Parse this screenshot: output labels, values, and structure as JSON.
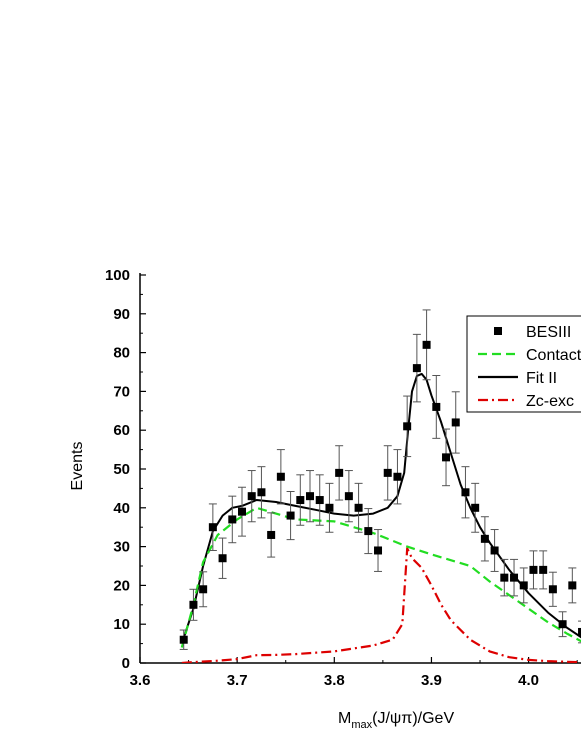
{
  "chart_data": {
    "type": "scatter",
    "xlabel_main": "M",
    "xlabel_sub": "max",
    "xlabel_rest": "(J/ψπ)/GeV",
    "ylabel": "Events",
    "xlim": [
      3.6,
      4.05
    ],
    "ylim": [
      0,
      100
    ],
    "xticks": [
      "3.6",
      "3.7",
      "3.8",
      "3.9",
      "4.0"
    ],
    "yticks": [
      "0",
      "10",
      "20",
      "30",
      "40",
      "50",
      "60",
      "70",
      "80",
      "90",
      "100"
    ],
    "legend_position": "top-right",
    "series": [
      {
        "name": "BESIII",
        "kind": "points",
        "color": "#000000",
        "x": [
          3.645,
          3.655,
          3.665,
          3.675,
          3.685,
          3.695,
          3.705,
          3.715,
          3.725,
          3.735,
          3.745,
          3.755,
          3.765,
          3.775,
          3.785,
          3.795,
          3.805,
          3.815,
          3.825,
          3.835,
          3.845,
          3.855,
          3.865,
          3.875,
          3.885,
          3.895,
          3.905,
          3.915,
          3.925,
          3.935,
          3.945,
          3.955,
          3.965,
          3.975,
          3.985,
          3.995,
          4.005,
          4.015,
          4.025,
          4.035,
          4.045,
          4.055
        ],
        "y": [
          6,
          15,
          19,
          35,
          27,
          37,
          39,
          43,
          44,
          33,
          48,
          38,
          42,
          43,
          42,
          40,
          49,
          43,
          40,
          34,
          29,
          49,
          48,
          61,
          76,
          82,
          66,
          53,
          62,
          44,
          40,
          32,
          29,
          22,
          22,
          20,
          24,
          24,
          19,
          10,
          20,
          8
        ],
        "err": [
          2.5,
          4,
          4.5,
          6,
          5.2,
          6,
          6.3,
          6.6,
          6.6,
          5.7,
          7,
          6.2,
          6.5,
          6.6,
          6.5,
          6.3,
          7,
          6.6,
          6.3,
          5.8,
          5.4,
          7,
          7,
          7.8,
          8.7,
          9,
          8.1,
          7.3,
          7.9,
          6.6,
          6.3,
          5.7,
          5.4,
          4.7,
          4.7,
          4.5,
          4.9,
          4.9,
          4.4,
          3.2,
          4.5,
          2.8
        ]
      },
      {
        "name": "Contact",
        "kind": "line",
        "style": "dashed",
        "color": "#22dd22",
        "x": [
          3.643,
          3.655,
          3.665,
          3.68,
          3.7,
          3.72,
          3.74,
          3.76,
          3.8,
          3.84,
          3.875,
          3.9,
          3.94,
          3.96,
          3.98,
          4.0,
          4.02,
          4.04,
          4.055
        ],
        "y": [
          4,
          15,
          26,
          33,
          37,
          40,
          38.5,
          37,
          36.5,
          33.5,
          30,
          28,
          25,
          21,
          17.5,
          14,
          10.5,
          7.5,
          5.5
        ]
      },
      {
        "name": "Fit II",
        "kind": "line",
        "style": "solid",
        "color": "#000000",
        "x": [
          3.643,
          3.655,
          3.665,
          3.675,
          3.685,
          3.695,
          3.705,
          3.72,
          3.74,
          3.76,
          3.78,
          3.8,
          3.82,
          3.84,
          3.855,
          3.865,
          3.872,
          3.876,
          3.88,
          3.885,
          3.89,
          3.895,
          3.9,
          3.91,
          3.92,
          3.93,
          3.94,
          3.95,
          3.96,
          3.98,
          4.0,
          4.02,
          4.04,
          4.055
        ],
        "y": [
          5,
          14,
          25,
          34,
          38,
          40,
          40.5,
          42,
          41.5,
          40.5,
          39.5,
          38.5,
          38,
          38.5,
          40,
          43,
          49,
          60,
          70,
          74,
          74.5,
          73,
          69,
          62,
          54,
          46,
          40,
          35,
          31,
          24,
          18,
          13,
          9,
          6.5
        ]
      },
      {
        "name": "Zc-exc",
        "kind": "line",
        "style": "dashdot",
        "color": "#dd0000",
        "x": [
          3.643,
          3.66,
          3.68,
          3.7,
          3.72,
          3.74,
          3.76,
          3.8,
          3.84,
          3.86,
          3.87,
          3.875,
          3.88,
          3.89,
          3.9,
          3.91,
          3.92,
          3.94,
          3.96,
          3.98,
          4.0,
          4.02,
          4.04,
          4.055
        ],
        "y": [
          0,
          0.3,
          0.6,
          1,
          2,
          2.1,
          2.3,
          3,
          4.5,
          6,
          10,
          29.5,
          27,
          24.5,
          20,
          15,
          11,
          6,
          3,
          1.5,
          0.8,
          0.5,
          0.3,
          0.2
        ]
      }
    ]
  }
}
